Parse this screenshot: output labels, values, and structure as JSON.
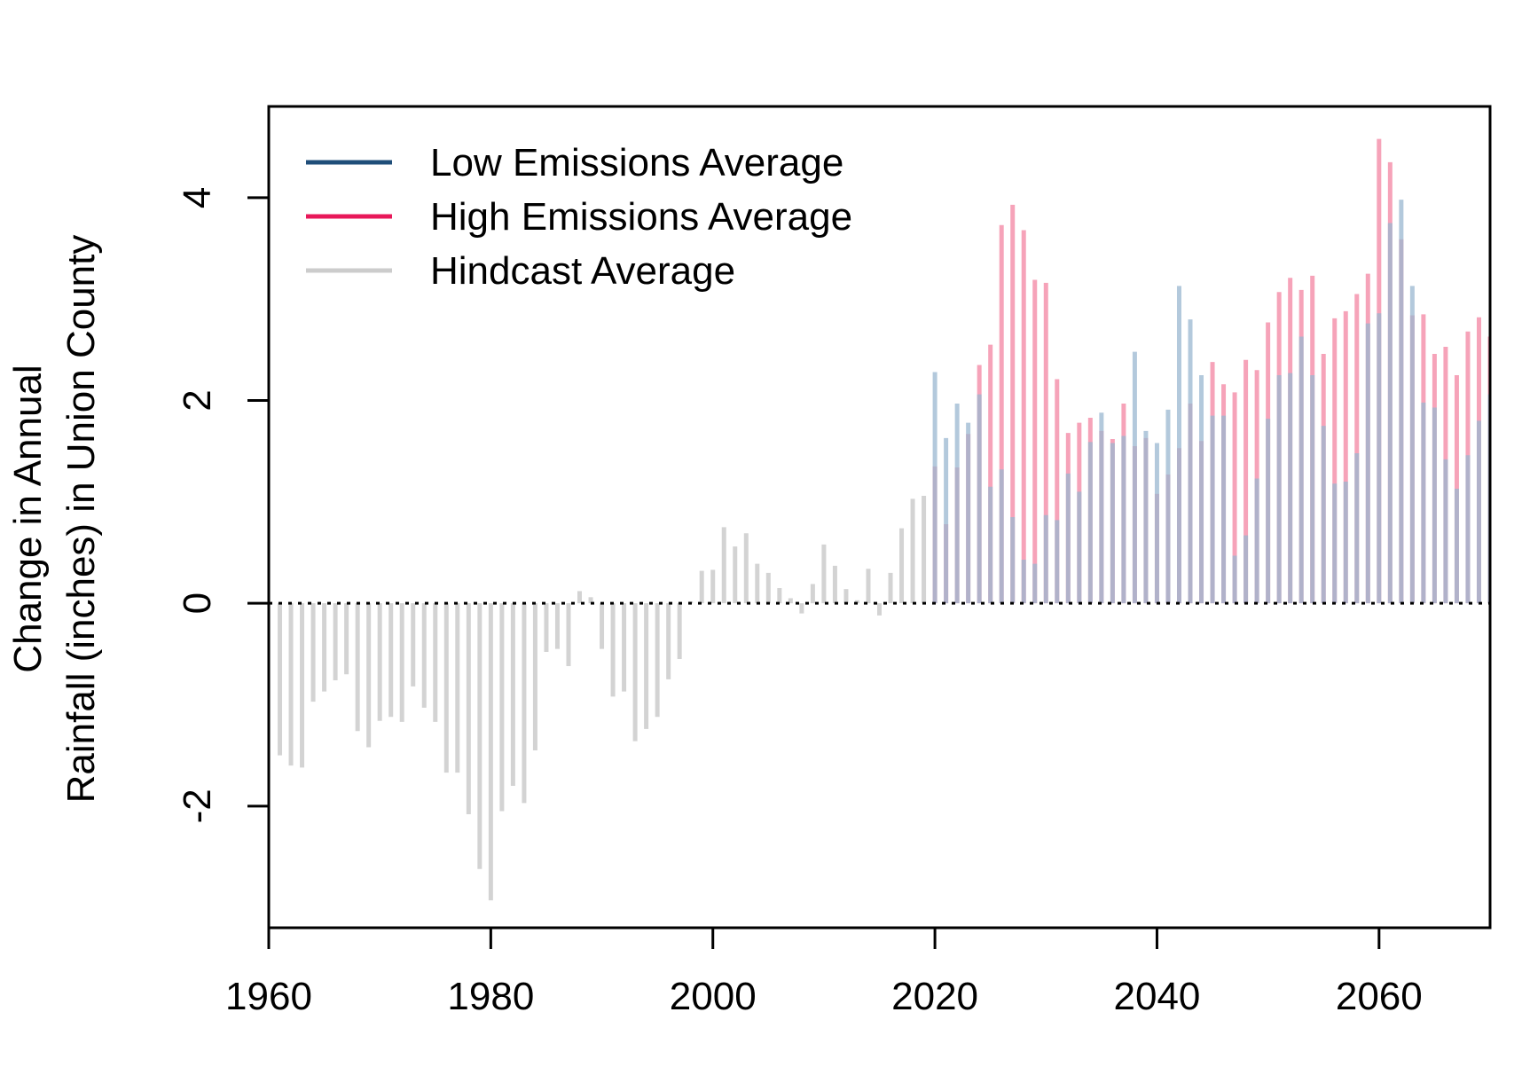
{
  "chart_data": {
    "type": "bar",
    "ylabel_line1": "Change in Annual",
    "ylabel_line2": "Rainfall (inches) in Union County",
    "xlim": [
      1960,
      2070
    ],
    "ylim": [
      -3.2,
      4.9
    ],
    "x_ticks": [
      1960,
      1980,
      2000,
      2020,
      2040,
      2060
    ],
    "y_ticks": [
      -2,
      0,
      2,
      4
    ],
    "reference_line": 0,
    "legend_position": "top-left",
    "series": [
      {
        "name": "Low Emissions Average",
        "legend_color": "#1f4e79",
        "bar_color": "#9ab7d0",
        "x": [
          2020,
          2021,
          2022,
          2023,
          2024,
          2025,
          2026,
          2027,
          2028,
          2029,
          2030,
          2031,
          2032,
          2033,
          2034,
          2035,
          2036,
          2037,
          2038,
          2039,
          2040,
          2041,
          2042,
          2043,
          2044,
          2045,
          2046,
          2047,
          2048,
          2049,
          2050,
          2051,
          2052,
          2053,
          2054,
          2055,
          2056,
          2057,
          2058,
          2059,
          2060,
          2061,
          2062,
          2063,
          2064,
          2065,
          2066,
          2067,
          2068,
          2069,
          2070
        ],
        "values": [
          2.28,
          1.63,
          1.97,
          1.78,
          2.06,
          1.15,
          1.32,
          0.85,
          0.43,
          0.39,
          0.87,
          0.82,
          1.28,
          1.1,
          1.59,
          1.88,
          1.58,
          1.65,
          2.48,
          1.7,
          1.58,
          1.91,
          3.13,
          2.8,
          2.25,
          1.85,
          1.85,
          0.47,
          0.67,
          1.23,
          1.82,
          2.25,
          2.27,
          2.63,
          2.25,
          1.75,
          1.18,
          1.2,
          1.48,
          2.76,
          2.86,
          3.75,
          3.98,
          3.13,
          1.98,
          1.93,
          1.42,
          1.13,
          1.46,
          1.8,
          2.06
        ]
      },
      {
        "name": "High Emissions Average",
        "legend_color": "#e8185a",
        "bar_color": "#f6a3b9",
        "x": [
          2020,
          2021,
          2022,
          2023,
          2024,
          2025,
          2026,
          2027,
          2028,
          2029,
          2030,
          2031,
          2032,
          2033,
          2034,
          2035,
          2036,
          2037,
          2038,
          2039,
          2040,
          2041,
          2042,
          2043,
          2044,
          2045,
          2046,
          2047,
          2048,
          2049,
          2050,
          2051,
          2052,
          2053,
          2054,
          2055,
          2056,
          2057,
          2058,
          2059,
          2060,
          2061,
          2062,
          2063,
          2064,
          2065,
          2066,
          2067,
          2068,
          2069,
          2070
        ],
        "values": [
          1.35,
          0.78,
          1.34,
          1.67,
          2.35,
          2.55,
          3.73,
          3.93,
          3.68,
          3.19,
          3.16,
          2.21,
          1.68,
          1.78,
          1.83,
          1.7,
          1.62,
          1.97,
          1.55,
          1.63,
          1.08,
          1.27,
          1.53,
          1.97,
          1.6,
          2.38,
          2.16,
          2.08,
          2.4,
          2.3,
          2.77,
          3.07,
          3.21,
          3.09,
          3.23,
          2.46,
          2.81,
          2.88,
          3.05,
          3.25,
          4.58,
          4.35,
          3.59,
          2.84,
          2.85,
          2.46,
          2.53,
          2.25,
          2.68,
          2.82,
          2.63
        ]
      },
      {
        "name": "Hindcast Average",
        "legend_color": "#cccccc",
        "bar_color": "#d3d3d3",
        "x": [
          1961,
          1962,
          1963,
          1964,
          1965,
          1966,
          1967,
          1968,
          1969,
          1970,
          1971,
          1972,
          1973,
          1974,
          1975,
          1976,
          1977,
          1978,
          1979,
          1980,
          1981,
          1982,
          1983,
          1984,
          1985,
          1986,
          1987,
          1988,
          1989,
          1990,
          1991,
          1992,
          1993,
          1994,
          1995,
          1996,
          1997,
          1998,
          1999,
          2000,
          2001,
          2002,
          2003,
          2004,
          2005,
          2006,
          2007,
          2008,
          2009,
          2010,
          2011,
          2012,
          2013,
          2014,
          2015,
          2016,
          2017,
          2018,
          2019
        ],
        "values": [
          -1.5,
          -1.6,
          -1.62,
          -0.97,
          -0.87,
          -0.76,
          -0.7,
          -1.26,
          -1.42,
          -1.16,
          -1.12,
          -1.17,
          -0.82,
          -1.03,
          -1.17,
          -1.67,
          -1.67,
          -2.08,
          -2.62,
          -2.93,
          -2.05,
          -1.8,
          -1.97,
          -1.45,
          -0.48,
          -0.45,
          -0.62,
          0.12,
          0.06,
          -0.45,
          -0.92,
          -0.87,
          -1.36,
          -1.24,
          -1.12,
          -0.75,
          -0.55,
          0.02,
          0.32,
          0.33,
          0.75,
          0.56,
          0.69,
          0.39,
          0.3,
          0.15,
          0.05,
          -0.1,
          0.19,
          0.58,
          0.37,
          0.14,
          0.03,
          0.34,
          -0.12,
          0.3,
          0.74,
          1.03,
          1.06
        ]
      }
    ]
  }
}
